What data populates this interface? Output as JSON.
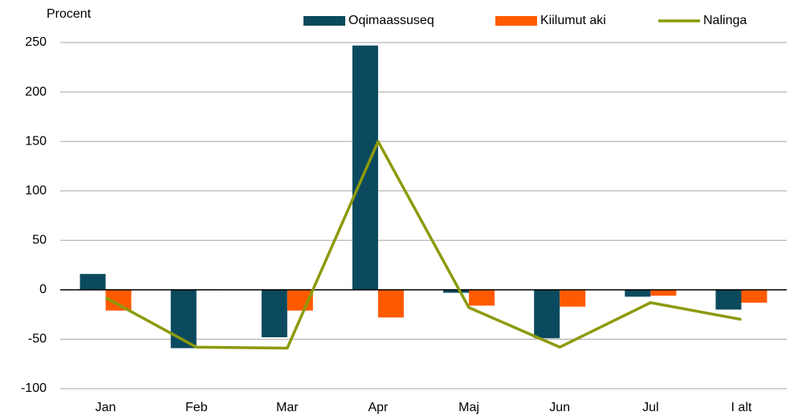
{
  "chart_data": {
    "type": "bar",
    "y_label": "Procent",
    "categories": [
      "Jan",
      "Feb",
      "Mar",
      "Apr",
      "Maj",
      "Jun",
      "Jul",
      "I alt"
    ],
    "series": [
      {
        "name": "Oqimaassuseq",
        "type": "bar",
        "color": "#0b4a5e",
        "values": [
          16,
          -59,
          -48,
          247,
          -3,
          -49,
          -7,
          -20
        ]
      },
      {
        "name": "Kiilumut aki",
        "type": "bar",
        "color": "#ff5a00",
        "values": [
          -21,
          0.5,
          -21,
          -28,
          -16,
          -17,
          -6,
          -13
        ]
      },
      {
        "name": "Nalinga",
        "type": "line",
        "color": "#8c9a0c",
        "values": [
          -8,
          -58,
          -59,
          150,
          -18,
          -58,
          -13,
          -30
        ]
      }
    ],
    "ylim": [
      -100,
      250
    ],
    "yticks": [
      -100,
      -50,
      0,
      50,
      100,
      150,
      200,
      250
    ],
    "grid": true,
    "legend": "top"
  }
}
